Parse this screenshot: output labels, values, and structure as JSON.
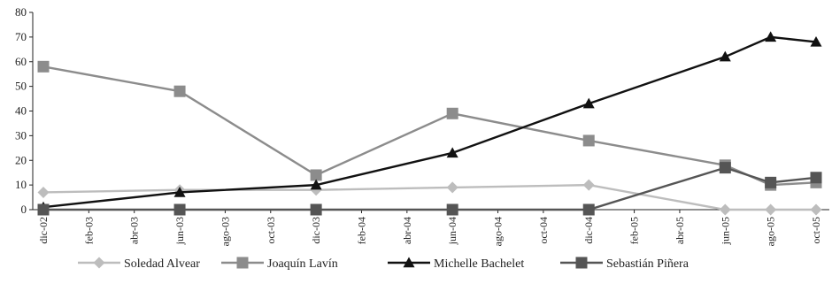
{
  "chart_data": {
    "type": "line",
    "title": "",
    "xlabel": "",
    "ylabel": "",
    "ylim": [
      0,
      80
    ],
    "yticks": [
      0,
      10,
      20,
      30,
      40,
      50,
      60,
      70,
      80
    ],
    "x_ticks": [
      "dic-02",
      "feb-03",
      "abr-03",
      "jun-03",
      "ago-03",
      "oct-03",
      "dic-03",
      "feb-04",
      "abr-04",
      "jun-04",
      "ago-04",
      "oct-04",
      "dic-04",
      "feb-05",
      "abr-05",
      "jun-05",
      "ago-05",
      "oct-05"
    ],
    "grid": false,
    "legend_position": "bottom",
    "series": [
      {
        "name": "Soledad Alvear",
        "color": "#bdbdbd",
        "marker": "diamond",
        "points": [
          {
            "x": "dic-02",
            "y": 7
          },
          {
            "x": "jun-03",
            "y": 8
          },
          {
            "x": "dic-03",
            "y": 8
          },
          {
            "x": "jun-04",
            "y": 9
          },
          {
            "x": "dic-04",
            "y": 10
          },
          {
            "x": "jun-05",
            "y": 0
          },
          {
            "x": "ago-05",
            "y": 0
          },
          {
            "x": "oct-05",
            "y": 0
          }
        ]
      },
      {
        "name": "Joaquín Lavín",
        "color": "#8c8c8c",
        "marker": "square",
        "points": [
          {
            "x": "dic-02",
            "y": 58
          },
          {
            "x": "jun-03",
            "y": 48
          },
          {
            "x": "dic-03",
            "y": 14
          },
          {
            "x": "jun-04",
            "y": 39
          },
          {
            "x": "dic-04",
            "y": 28
          },
          {
            "x": "jun-05",
            "y": 18
          },
          {
            "x": "ago-05",
            "y": 10
          },
          {
            "x": "oct-05",
            "y": 11
          }
        ]
      },
      {
        "name": "Michelle Bachelet",
        "color": "#111111",
        "marker": "triangle",
        "points": [
          {
            "x": "dic-02",
            "y": 1
          },
          {
            "x": "jun-03",
            "y": 7
          },
          {
            "x": "dic-03",
            "y": 10
          },
          {
            "x": "jun-04",
            "y": 23
          },
          {
            "x": "dic-04",
            "y": 43
          },
          {
            "x": "jun-05",
            "y": 62
          },
          {
            "x": "ago-05",
            "y": 70
          },
          {
            "x": "oct-05",
            "y": 68
          }
        ]
      },
      {
        "name": "Sebastián Piñera",
        "color": "#555555",
        "marker": "square",
        "points": [
          {
            "x": "dic-02",
            "y": 0
          },
          {
            "x": "jun-03",
            "y": 0
          },
          {
            "x": "dic-03",
            "y": 0
          },
          {
            "x": "jun-04",
            "y": 0
          },
          {
            "x": "dic-04",
            "y": 0
          },
          {
            "x": "jun-05",
            "y": 17
          },
          {
            "x": "ago-05",
            "y": 11
          },
          {
            "x": "oct-05",
            "y": 13
          }
        ]
      }
    ]
  }
}
